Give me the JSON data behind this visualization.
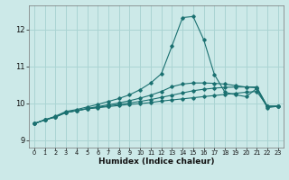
{
  "xlabel": "Humidex (Indice chaleur)",
  "ylabel": "",
  "xlim": [
    -0.5,
    23.5
  ],
  "ylim": [
    8.8,
    12.65
  ],
  "yticks": [
    9,
    10,
    11,
    12
  ],
  "xticks": [
    0,
    1,
    2,
    3,
    4,
    5,
    6,
    7,
    8,
    9,
    10,
    11,
    12,
    13,
    14,
    15,
    16,
    17,
    18,
    19,
    20,
    21,
    22,
    23
  ],
  "background_color": "#cce9e8",
  "grid_color": "#aad4d3",
  "line_color": "#1a7070",
  "lines": [
    {
      "x": [
        0,
        1,
        2,
        3,
        4,
        5,
        6,
        7,
        8,
        9,
        10,
        11,
        12,
        13,
        14,
        15,
        16,
        17,
        18,
        19,
        20,
        21,
        22,
        23
      ],
      "y": [
        9.45,
        9.55,
        9.63,
        9.75,
        9.8,
        9.85,
        9.88,
        9.91,
        9.94,
        9.97,
        9.99,
        10.02,
        10.06,
        10.09,
        10.12,
        10.15,
        10.18,
        10.21,
        10.24,
        10.27,
        10.3,
        10.32,
        9.92,
        9.92
      ]
    },
    {
      "x": [
        0,
        1,
        2,
        3,
        4,
        5,
        6,
        7,
        8,
        9,
        10,
        11,
        12,
        13,
        14,
        15,
        16,
        17,
        18,
        19,
        20,
        21,
        22,
        23
      ],
      "y": [
        9.45,
        9.55,
        9.63,
        9.75,
        9.8,
        9.85,
        9.89,
        9.93,
        9.97,
        10.01,
        10.05,
        10.1,
        10.16,
        10.22,
        10.28,
        10.34,
        10.38,
        10.41,
        10.43,
        10.44,
        10.44,
        10.44,
        9.92,
        9.92
      ]
    },
    {
      "x": [
        0,
        1,
        2,
        3,
        4,
        5,
        6,
        7,
        8,
        9,
        10,
        11,
        12,
        13,
        14,
        15,
        16,
        17,
        18,
        19,
        20,
        21,
        22,
        23
      ],
      "y": [
        9.45,
        9.55,
        9.63,
        9.75,
        9.8,
        9.86,
        9.91,
        9.96,
        10.01,
        10.07,
        10.14,
        10.22,
        10.32,
        10.45,
        10.52,
        10.55,
        10.55,
        10.54,
        10.52,
        10.48,
        10.44,
        10.42,
        9.92,
        9.92
      ]
    },
    {
      "x": [
        0,
        1,
        2,
        3,
        4,
        5,
        6,
        7,
        8,
        9,
        10,
        11,
        12,
        13,
        14,
        15,
        16,
        17,
        18,
        19,
        20,
        21,
        22,
        23
      ],
      "y": [
        9.45,
        9.55,
        9.65,
        9.78,
        9.83,
        9.9,
        9.97,
        10.05,
        10.13,
        10.23,
        10.37,
        10.55,
        10.8,
        11.55,
        12.32,
        12.35,
        11.72,
        10.78,
        10.3,
        10.23,
        10.18,
        10.4,
        9.88,
        9.92
      ]
    }
  ]
}
